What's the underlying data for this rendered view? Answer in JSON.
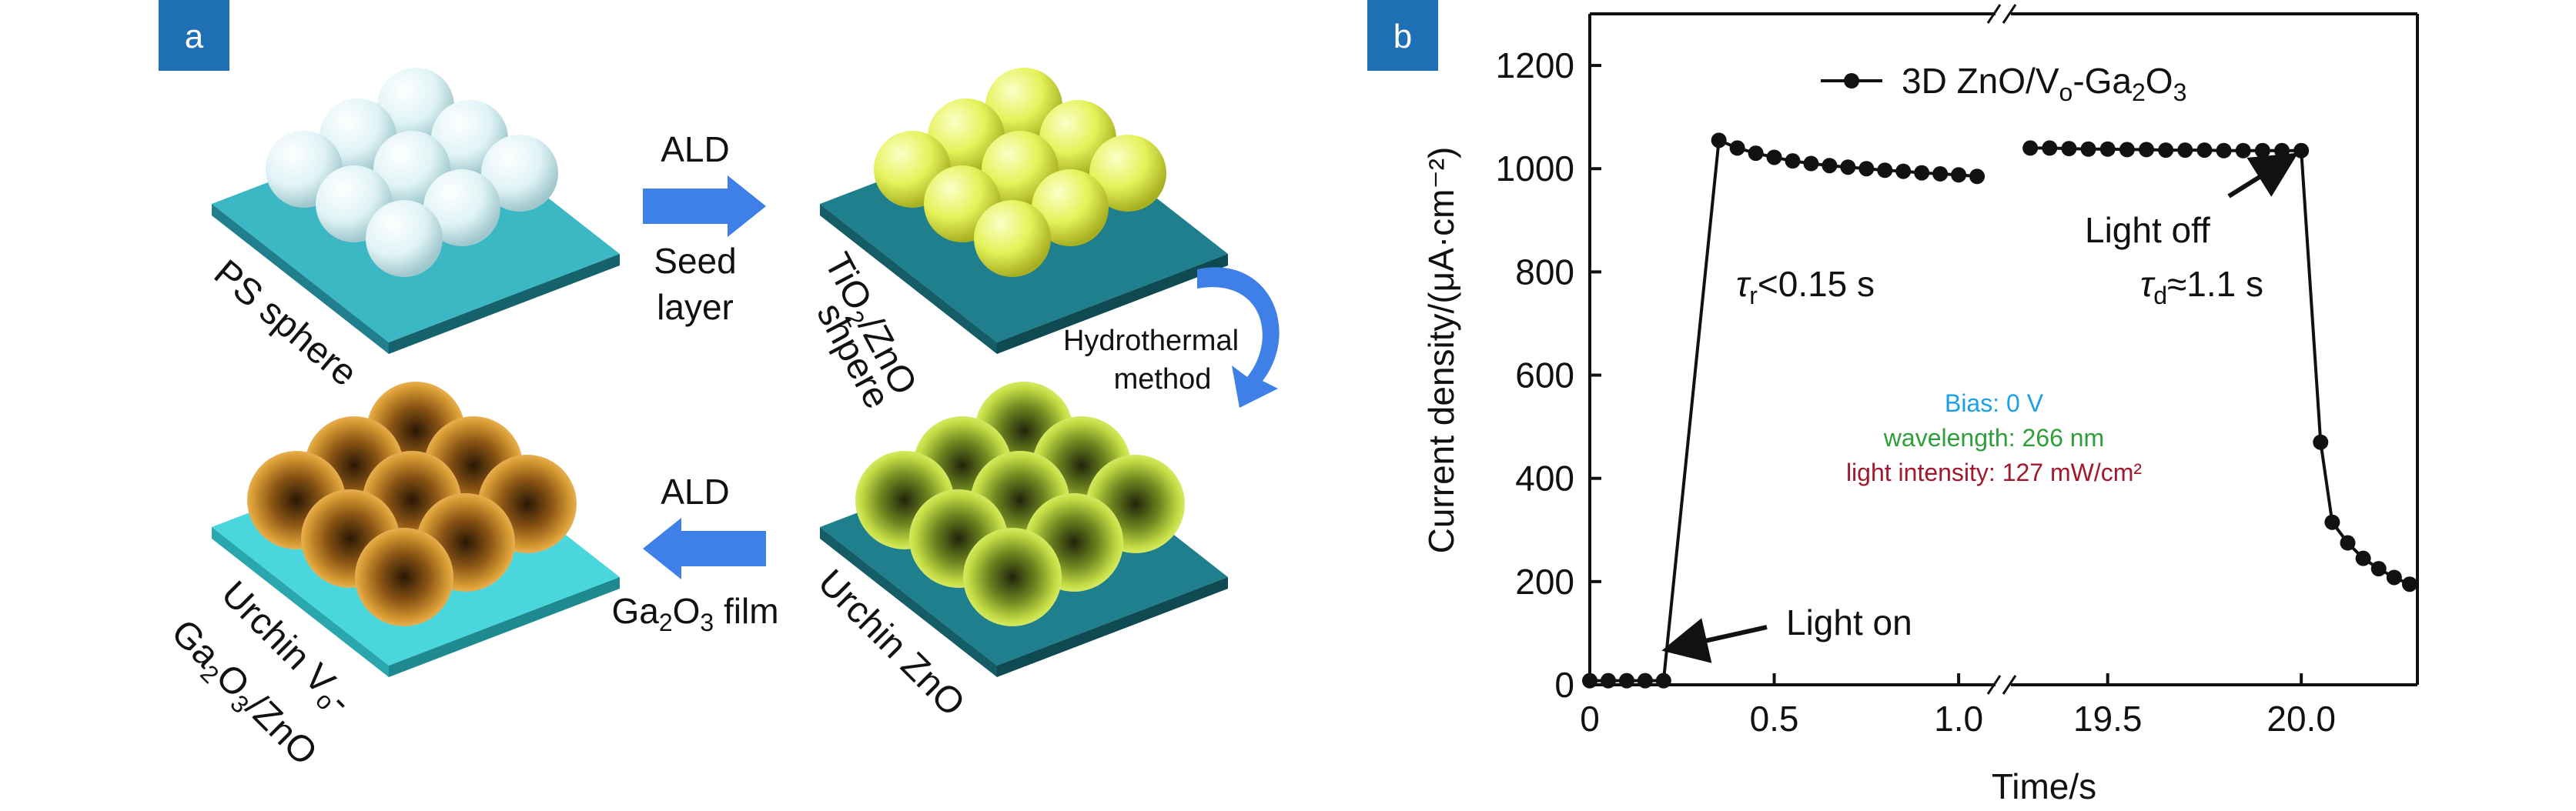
{
  "panel_a": {
    "badge": "a",
    "steps": {
      "ps_sphere": "PS sphere",
      "tio2_zno_main": "TiO",
      "tio2_zno_sub": "2",
      "tio2_zno_rest": "/ZnO",
      "tio2_zno_line2": "shpere",
      "urchin_zno": "Urchin ZnO",
      "urchin_vo_line1_main": "Urchin V",
      "urchin_vo_line1_sub": "o",
      "urchin_vo_line1_rest": "-",
      "urchin_vo_line2_a": "Ga",
      "urchin_vo_line2_b": "2",
      "urchin_vo_line2_c": "O",
      "urchin_vo_line2_d": "3",
      "urchin_vo_line2_e": "/ZnO"
    },
    "arrows": {
      "ald_top": "ALD",
      "seed_line1": "Seed",
      "seed_line2": "layer",
      "hydro_line1": "Hydrothermal",
      "hydro_line2": "method",
      "ald_bottom": "ALD",
      "ga2o3_a": "Ga",
      "ga2o3_b": "2",
      "ga2o3_c": "O",
      "ga2o3_d": "3",
      "ga2o3_e": " film"
    },
    "colors": {
      "substrate_light": "#3cb8c4",
      "substrate_dark": "#1f7f8c",
      "ps_sphere": "#dff3f6",
      "tio2_sphere": "#e5f25a",
      "urchin_zno": "#a9c437",
      "urchin_vo": "#c98a2b",
      "arrow_blue": "#3f7fe8"
    }
  },
  "panel_b": {
    "badge": "b",
    "legend_main": "3D ZnO/V",
    "legend_sub_o": "o",
    "legend_rest": "-Ga",
    "legend_sub_2": "2",
    "legend_o": "O",
    "legend_sub_3": "3",
    "tau_r_main": "τ",
    "tau_r_sub": "r",
    "tau_r_rest": "<0.15 s",
    "tau_d_main": "τ",
    "tau_d_sub": "d",
    "tau_d_rest": "≈1.1 s",
    "light_off": "Light off",
    "light_on": "Light on",
    "bias": "Bias: 0 V",
    "wavelength": "wavelength: 266 nm",
    "intensity": "light intensity: 127 mW/cm²",
    "colors": {
      "bias": "#1aa0e6",
      "wavelength": "#2e9e3a",
      "intensity": "#a2192e"
    }
  },
  "chart_data": {
    "type": "line",
    "xlabel": "Time/s",
    "ylabel": "Current density/(μA·cm⁻²)",
    "ylim": [
      0,
      1300
    ],
    "y_ticks": [
      "0",
      "200",
      "400",
      "600",
      "800",
      "1000",
      "1200"
    ],
    "x_ticks": [
      "0",
      "0.5",
      "1.0",
      "19.5",
      "20.0"
    ],
    "x_break": "between 1.0 and 19.5",
    "segments": [
      {
        "name": "3D ZnO/Vo-Ga2O3",
        "x": [
          0.0,
          0.05,
          0.1,
          0.15,
          0.2,
          0.35,
          0.4,
          0.45,
          0.5,
          0.55,
          0.6,
          0.65,
          0.7,
          0.75,
          0.8,
          0.85,
          0.9,
          0.95,
          1.0,
          1.05
        ],
        "y": [
          8,
          8,
          8,
          8,
          8,
          1055,
          1040,
          1030,
          1022,
          1015,
          1010,
          1006,
          1003,
          1000,
          997,
          995,
          992,
          990,
          988,
          985
        ]
      },
      {
        "name": "3D ZnO/Vo-Ga2O3",
        "x": [
          19.3,
          19.35,
          19.4,
          19.45,
          19.5,
          19.55,
          19.6,
          19.65,
          19.7,
          19.75,
          19.8,
          19.85,
          19.9,
          19.95,
          20.0,
          20.05,
          20.08,
          20.12,
          20.16,
          20.2,
          20.24,
          20.28
        ],
        "y": [
          1040,
          1040,
          1039,
          1038,
          1038,
          1037,
          1037,
          1036,
          1036,
          1036,
          1035,
          1035,
          1035,
          1035,
          1035,
          470,
          315,
          275,
          245,
          225,
          208,
          195
        ]
      }
    ],
    "annotations": [
      "τr<0.15 s",
      "τd≈1.1 s",
      "Light on",
      "Light off"
    ],
    "legend": "top"
  }
}
